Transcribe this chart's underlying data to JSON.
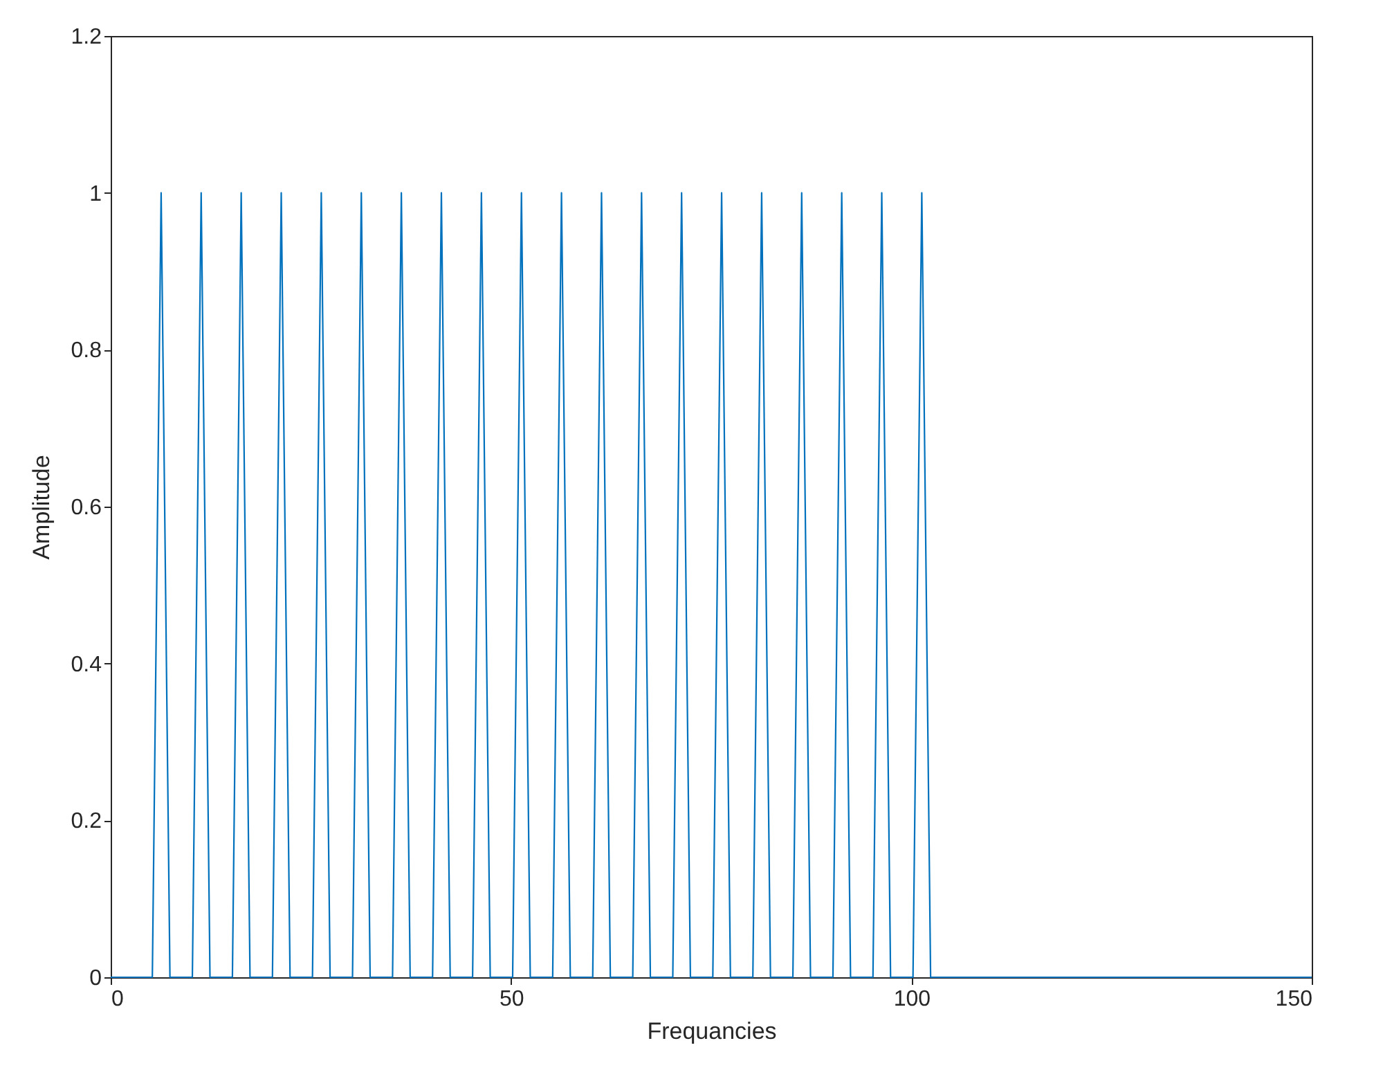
{
  "chart_data": {
    "type": "line",
    "xlabel": "Frequancies",
    "ylabel": "Amplitude",
    "x": [
      0,
      5.2,
      6.3,
      7.4,
      10.2,
      11.3,
      12.4,
      15.2,
      16.3,
      17.4,
      20.2,
      21.3,
      22.4,
      25.2,
      26.3,
      27.4,
      30.2,
      31.3,
      32.4,
      35.2,
      36.3,
      37.4,
      40.2,
      41.3,
      42.4,
      45.2,
      46.3,
      47.4,
      50.2,
      51.3,
      52.4,
      55.2,
      56.3,
      57.4,
      60.2,
      61.3,
      62.4,
      65.2,
      66.3,
      67.4,
      70.2,
      71.3,
      72.4,
      75.2,
      76.3,
      77.4,
      80.2,
      81.3,
      82.4,
      85.2,
      86.3,
      87.4,
      90.2,
      91.3,
      92.4,
      95.2,
      96.3,
      97.4,
      100.2,
      101.3,
      102.4,
      150
    ],
    "series": [
      {
        "color": "#0072bd",
        "values": [
          0,
          0,
          1,
          0,
          0,
          1,
          0,
          0,
          1,
          0,
          0,
          1,
          0,
          0,
          1,
          0,
          0,
          1,
          0,
          0,
          1,
          0,
          0,
          1,
          0,
          0,
          1,
          0,
          0,
          1,
          0,
          0,
          1,
          0,
          0,
          1,
          0,
          0,
          1,
          0,
          0,
          1,
          0,
          0,
          1,
          0,
          0,
          1,
          0,
          0,
          1,
          0,
          0,
          1,
          0,
          0,
          1,
          0,
          0,
          1,
          0,
          0
        ]
      }
    ],
    "xlim": [
      0,
      150
    ],
    "xticks": [
      0,
      50,
      100,
      150
    ],
    "ylim": [
      0,
      1.2
    ],
    "yticks": [
      0,
      0.2,
      0.4,
      0.6,
      0.8,
      1,
      1.2
    ],
    "grid": false,
    "marker": "none",
    "line_style": "solid"
  }
}
